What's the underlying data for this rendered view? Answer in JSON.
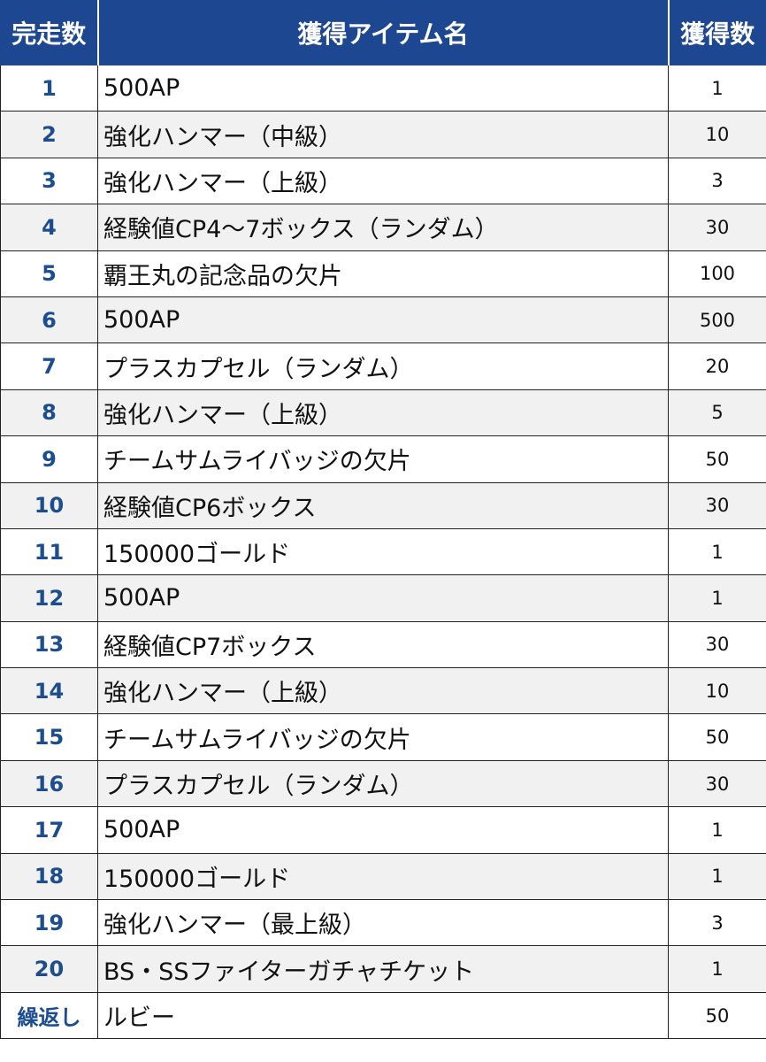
{
  "headers": {
    "runs": "完走数",
    "item": "獲得アイテム名",
    "quantity": "獲得数"
  },
  "rows": [
    {
      "run": "1",
      "item": "500AP",
      "qty": "1"
    },
    {
      "run": "2",
      "item": "強化ハンマー（中級）",
      "qty": "10"
    },
    {
      "run": "3",
      "item": "強化ハンマー（上級）",
      "qty": "3"
    },
    {
      "run": "4",
      "item": "経験値CP4〜7ボックス（ランダム）",
      "qty": "30"
    },
    {
      "run": "5",
      "item": "覇王丸の記念品の欠片",
      "qty": "100"
    },
    {
      "run": "6",
      "item": "500AP",
      "qty": "500"
    },
    {
      "run": "7",
      "item": "プラスカプセル（ランダム）",
      "qty": "20"
    },
    {
      "run": "8",
      "item": "強化ハンマー（上級）",
      "qty": "5"
    },
    {
      "run": "9",
      "item": "チームサムライバッジの欠片",
      "qty": "50"
    },
    {
      "run": "10",
      "item": "経験値CP6ボックス",
      "qty": "30"
    },
    {
      "run": "11",
      "item": "150000ゴールド",
      "qty": "1"
    },
    {
      "run": "12",
      "item": "500AP",
      "qty": "1"
    },
    {
      "run": "13",
      "item": "経験値CP7ボックス",
      "qty": "30"
    },
    {
      "run": "14",
      "item": "強化ハンマー（上級）",
      "qty": "10"
    },
    {
      "run": "15",
      "item": "チームサムライバッジの欠片",
      "qty": "50"
    },
    {
      "run": "16",
      "item": "プラスカプセル（ランダム）",
      "qty": "30"
    },
    {
      "run": "17",
      "item": "500AP",
      "qty": "1"
    },
    {
      "run": "18",
      "item": "150000ゴールド",
      "qty": "1"
    },
    {
      "run": "19",
      "item": "強化ハンマー（最上級）",
      "qty": "3"
    },
    {
      "run": "20",
      "item": "BS・SSファイターガチャチケット",
      "qty": "1"
    },
    {
      "run": "繰返し",
      "item": "ルビー",
      "qty": "50"
    }
  ]
}
